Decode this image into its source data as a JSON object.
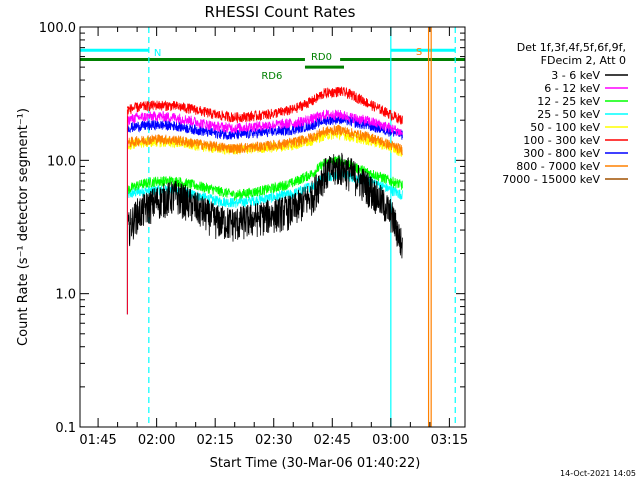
{
  "chart_data": {
    "type": "line",
    "title": "RHESSI Count Rates",
    "xlabel": "Start Time (30-Mar-06 01:40:22)",
    "ylabel": "Count Rate (s⁻¹ detector segment⁻¹)",
    "yscale": "log",
    "ylim": [
      0.1,
      100.0
    ],
    "xlim": [
      "01:40:22",
      "03:19:00"
    ],
    "x_ticks": [
      "01:45",
      "02:00",
      "02:15",
      "02:30",
      "02:45",
      "03:00",
      "03:15"
    ],
    "y_ticks": [
      "0.1",
      "1.0",
      "10.0",
      "100.0"
    ],
    "grid": false,
    "legend": {
      "placement": "right",
      "header": [
        "Det 1f,3f,4f,5f,6f,9f,",
        "FDecim 2, Att 0"
      ],
      "entries": [
        {
          "label": "3 - 6 keV",
          "color": "#000000"
        },
        {
          "label": "6 - 12 keV",
          "color": "#ff00ff"
        },
        {
          "label": "12 - 25 keV",
          "color": "#00ff00"
        },
        {
          "label": "25 - 50 keV",
          "color": "#00ffff"
        },
        {
          "label": "50 - 100 keV",
          "color": "#ffff00"
        },
        {
          "label": "100 - 300 keV",
          "color": "#ff0000"
        },
        {
          "label": "300 - 800 keV",
          "color": "#0000ff"
        },
        {
          "label": "800 - 7000 keV",
          "color": "#ff8000"
        },
        {
          "label": "7000 - 15000 keV",
          "color": "#a05000"
        }
      ]
    },
    "series": [
      {
        "name": "3 - 6 keV",
        "color": "#000000",
        "noise": 0.3,
        "x": [
          "01:52:30",
          "01:55:00",
          "02:00:00",
          "02:05:00",
          "02:10:00",
          "02:15:00",
          "02:20:00",
          "02:25:00",
          "02:30:00",
          "02:35:00",
          "02:40:00",
          "02:43:00",
          "02:47:00",
          "02:50:00",
          "02:55:00",
          "03:00:00",
          "03:03:00"
        ],
        "y": [
          3.0,
          4.0,
          5.0,
          5.5,
          4.5,
          3.6,
          3.4,
          3.7,
          4.0,
          4.3,
          5.5,
          8.0,
          9.0,
          8.0,
          6.0,
          4.0,
          2.2
        ]
      },
      {
        "name": "6 - 12 keV",
        "color": "#ff00ff",
        "x": [
          "01:52:30",
          "01:55:00",
          "02:00:00",
          "02:05:00",
          "02:10:00",
          "02:15:00",
          "02:20:00",
          "02:25:00",
          "02:30:00",
          "02:35:00",
          "02:40:00",
          "02:43:00",
          "02:47:00",
          "02:50:00",
          "02:55:00",
          "03:00:00",
          "03:03:00"
        ],
        "y": [
          20,
          21,
          21.5,
          21,
          19.5,
          18,
          17.5,
          18,
          18.5,
          19,
          20.5,
          22,
          22,
          21,
          19.5,
          17.5,
          16
        ]
      },
      {
        "name": "12 - 25 keV",
        "color": "#00ff00",
        "x": [
          "01:52:30",
          "01:55:00",
          "02:00:00",
          "02:05:00",
          "02:10:00",
          "02:15:00",
          "02:20:00",
          "02:25:00",
          "02:30:00",
          "02:35:00",
          "02:40:00",
          "02:43:00",
          "02:47:00",
          "02:50:00",
          "02:55:00",
          "03:00:00",
          "03:03:00"
        ],
        "y": [
          6.0,
          6.5,
          7.0,
          7.0,
          6.5,
          6.0,
          5.5,
          5.8,
          6.2,
          6.8,
          8.0,
          9.5,
          10.0,
          9.0,
          8.0,
          7.0,
          6.5
        ]
      },
      {
        "name": "25 - 50 keV",
        "color": "#00ffff",
        "x": [
          "01:52:30",
          "01:55:00",
          "02:00:00",
          "02:05:00",
          "02:10:00",
          "02:15:00",
          "02:20:00",
          "02:25:00",
          "02:30:00",
          "02:35:00",
          "02:40:00",
          "02:43:00",
          "02:47:00",
          "02:50:00",
          "02:55:00",
          "03:00:00",
          "03:03:00"
        ],
        "y": [
          5.5,
          5.8,
          6.0,
          6.0,
          5.5,
          5.0,
          4.8,
          5.0,
          5.3,
          5.6,
          6.5,
          7.5,
          8.0,
          7.5,
          7.0,
          6.0,
          5.5
        ]
      },
      {
        "name": "50 - 100 keV",
        "color": "#ffff00",
        "x": [
          "01:52:30",
          "01:55:00",
          "02:00:00",
          "02:05:00",
          "02:10:00",
          "02:15:00",
          "02:20:00",
          "02:25:00",
          "02:30:00",
          "02:35:00",
          "02:40:00",
          "02:43:00",
          "02:47:00",
          "02:50:00",
          "02:55:00",
          "03:00:00",
          "03:03:00"
        ],
        "y": [
          13.0,
          13.5,
          13.8,
          13.6,
          13.0,
          12.3,
          12.0,
          12.3,
          12.6,
          13.0,
          14.2,
          15.5,
          15.8,
          15.0,
          14.0,
          12.5,
          11.5
        ]
      },
      {
        "name": "100 - 300 keV",
        "color": "#ff0000",
        "x": [
          "01:52:30",
          "01:55:00",
          "02:00:00",
          "02:05:00",
          "02:10:00",
          "02:15:00",
          "02:20:00",
          "02:25:00",
          "02:30:00",
          "02:35:00",
          "02:40:00",
          "02:43:00",
          "02:47:00",
          "02:50:00",
          "02:55:00",
          "03:00:00",
          "03:03:00"
        ],
        "y": [
          24,
          25,
          26,
          25.5,
          24,
          22,
          21,
          21.5,
          22.5,
          24,
          28,
          32,
          33,
          31,
          26,
          22,
          20
        ]
      },
      {
        "name": "300 - 800 keV",
        "color": "#0000ff",
        "x": [
          "01:52:30",
          "01:55:00",
          "02:00:00",
          "02:05:00",
          "02:10:00",
          "02:15:00",
          "02:20:00",
          "02:25:00",
          "02:30:00",
          "02:35:00",
          "02:40:00",
          "02:43:00",
          "02:47:00",
          "02:50:00",
          "02:55:00",
          "03:00:00",
          "03:03:00"
        ],
        "y": [
          17.5,
          18,
          18.5,
          18.2,
          17.0,
          16.0,
          15.5,
          16.0,
          16.5,
          17.0,
          18.5,
          20.0,
          20.5,
          19.5,
          18.0,
          16.5,
          15.5
        ]
      },
      {
        "name": "800 - 7000 keV",
        "color": "#ff8000",
        "x": [
          "01:52:30",
          "01:55:00",
          "02:00:00",
          "02:05:00",
          "02:10:00",
          "02:15:00",
          "02:20:00",
          "02:25:00",
          "02:30:00",
          "02:35:00",
          "02:40:00",
          "02:43:00",
          "02:47:00",
          "02:50:00",
          "02:55:00",
          "03:00:00",
          "03:03:00"
        ],
        "y": [
          13.5,
          14.0,
          14.5,
          14.2,
          13.4,
          12.7,
          12.3,
          12.6,
          13.0,
          13.6,
          15.0,
          16.5,
          17.0,
          16.0,
          14.8,
          13.0,
          12.0
        ]
      },
      {
        "name": "7000 - 15000 keV",
        "color": "#a05000",
        "x": [],
        "y": []
      }
    ],
    "annotations": [
      {
        "text": "N",
        "color": "#00ffff",
        "x_start": "01:40:22",
        "x_end": "01:58:00",
        "y": 64
      },
      {
        "text": "S",
        "color": "#ff8000",
        "x": "03:10:00",
        "y": 65
      },
      {
        "text": "RD0",
        "color": "#008000",
        "x_start": "02:38:00",
        "x_end": "02:48:00",
        "y": 50
      },
      {
        "text": "RD6",
        "color": "#008000",
        "x": "02:34:00",
        "y": 50
      }
    ],
    "bars": [
      {
        "color": "#00ffff",
        "x_start": "01:40:22",
        "x_end": "01:58:00",
        "y": 67
      },
      {
        "color": "#00ffff",
        "x_start": "03:00:00",
        "x_end": "03:16:30",
        "y": 67
      },
      {
        "color": "#008000",
        "x_start": "01:40:22",
        "x_end": "02:38:00",
        "y": 57
      },
      {
        "color": "#008000",
        "x_start": "02:47:00",
        "x_end": "03:19:00",
        "y": 57
      },
      {
        "color": "#008000",
        "x_start": "02:38:00",
        "x_end": "02:48:00",
        "y": 50
      }
    ],
    "vertical_lines": [
      {
        "color": "#00ffff",
        "style": "dashed",
        "x": "01:58:00"
      },
      {
        "color": "#00ffff",
        "style": "solid",
        "x": "03:00:00"
      },
      {
        "color": "#ff8000",
        "style": "solid",
        "x": "03:09:40"
      },
      {
        "color": "#ff8000",
        "style": "solid",
        "x": "03:10:20"
      },
      {
        "color": "#00ffff",
        "style": "dashed",
        "x": "03:16:30"
      }
    ],
    "footer": "14-Oct-2021 14:05"
  }
}
